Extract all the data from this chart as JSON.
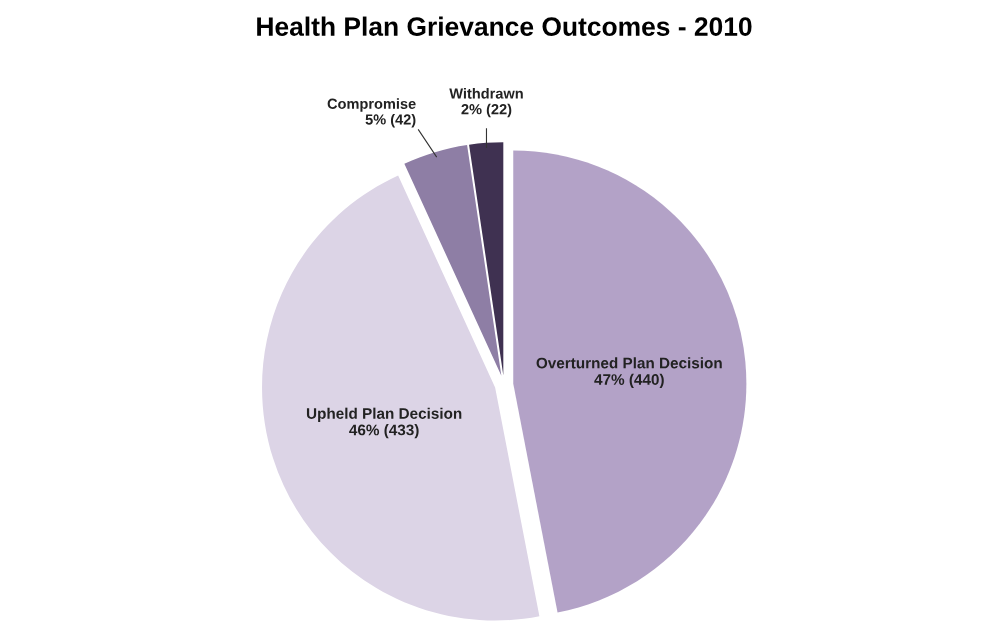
{
  "chart_data": {
    "type": "pie",
    "title": "Health Plan Grievance Outcomes - 2010",
    "categories": [
      "Overturned Plan Decision",
      "Upheld Plan Decision",
      "Compromise",
      "Withdrawn"
    ],
    "values": [
      440,
      433,
      42,
      22
    ],
    "colors": [
      "#b3a2c7",
      "#dcd4e6",
      "#8e7ea5",
      "#3f3151"
    ],
    "value_labels": [
      "47% (440)",
      "46% (433)",
      "5% (42)",
      "2% (22)"
    ]
  }
}
